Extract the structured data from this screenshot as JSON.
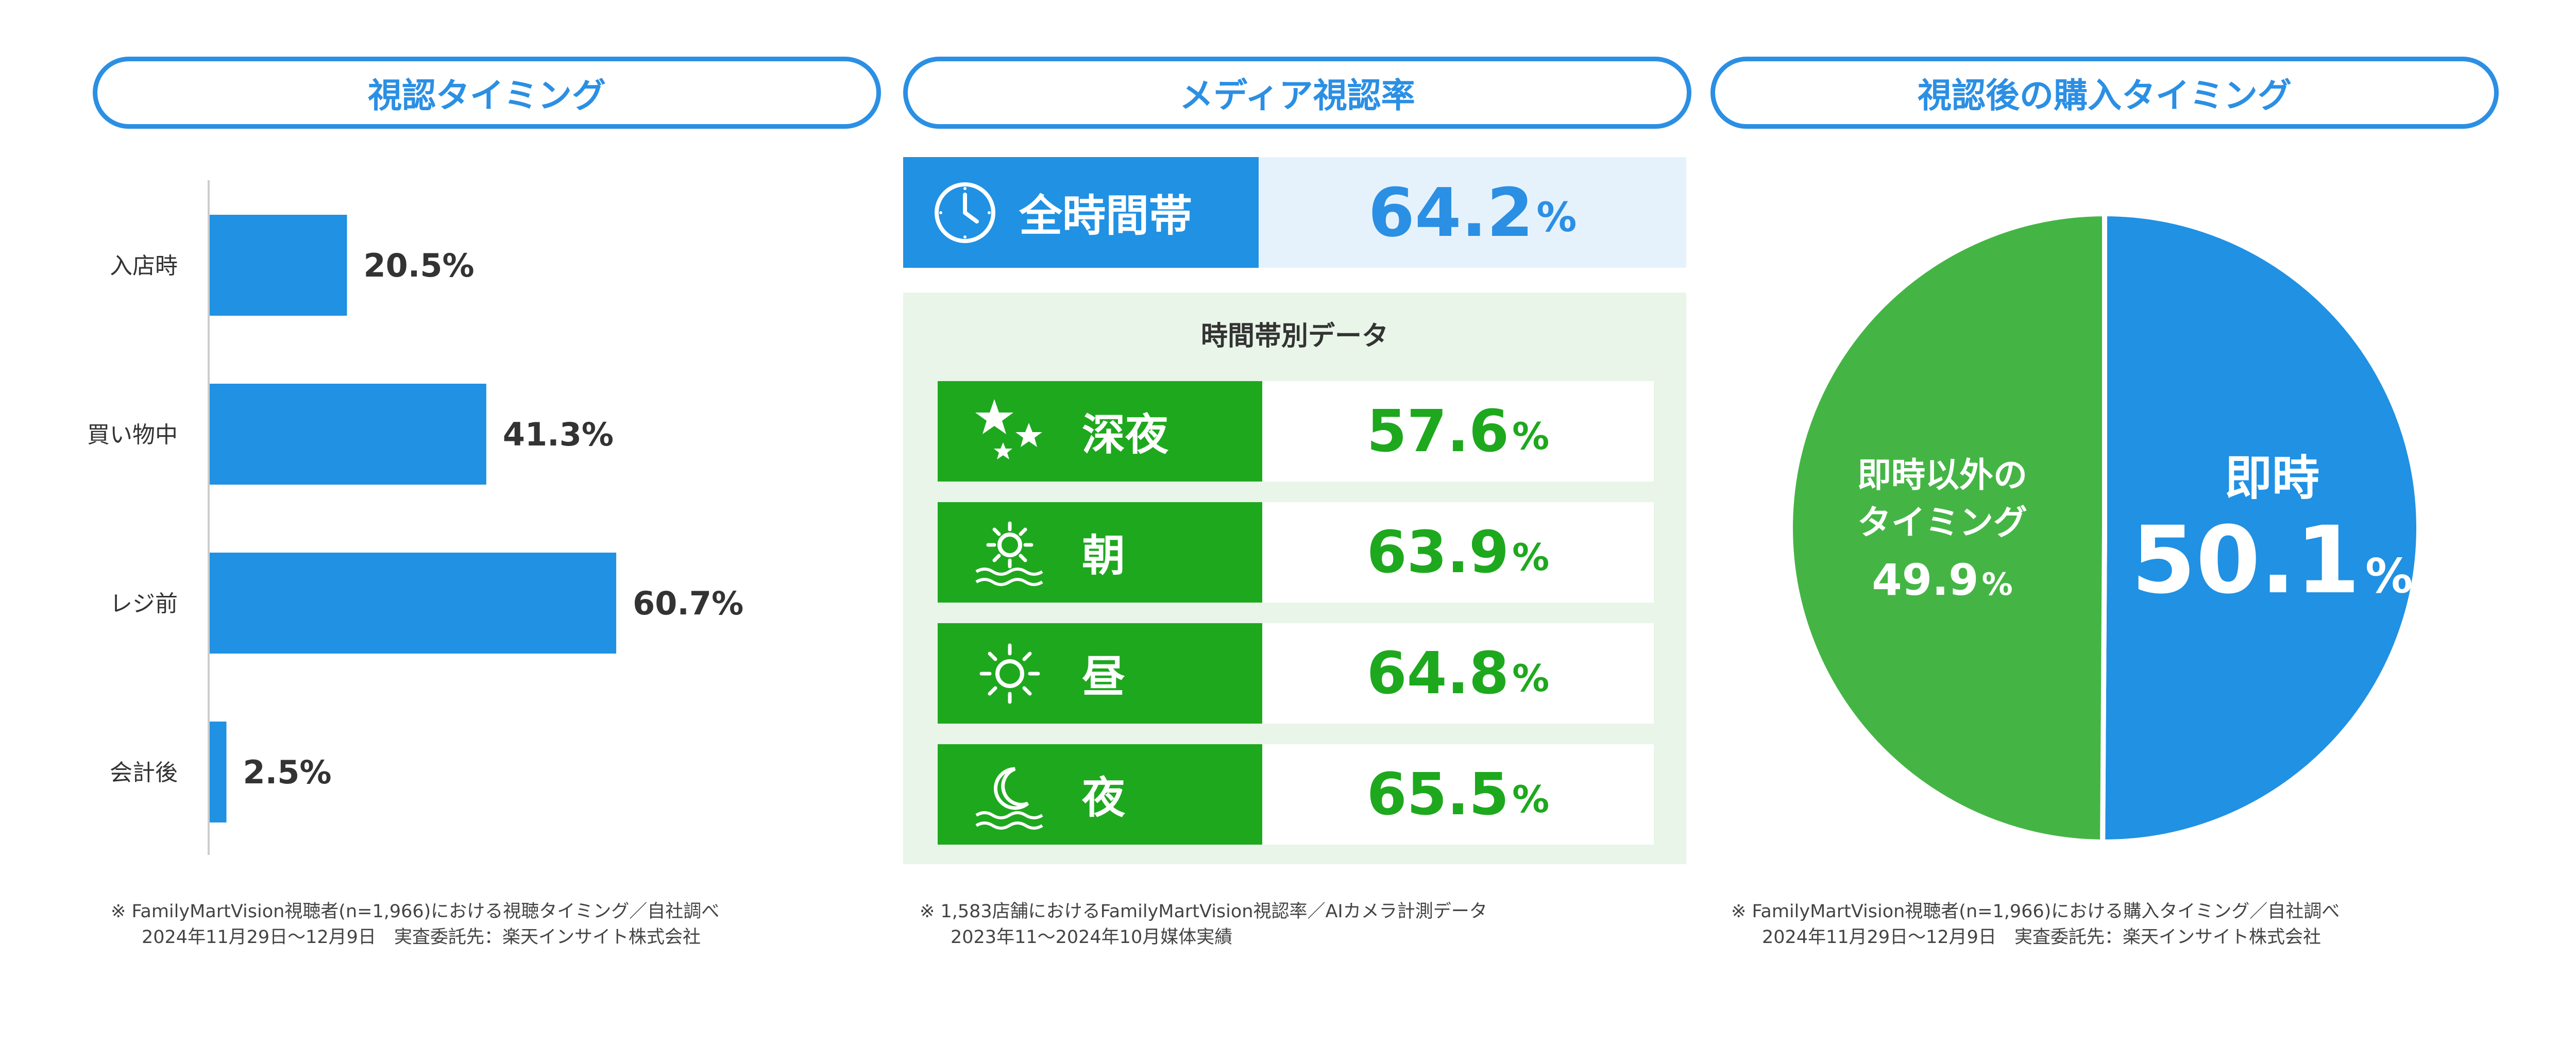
{
  "headers": {
    "left": "視認タイミング",
    "middle": "メディア視認率",
    "right": "視認後の購入タイミング"
  },
  "chart_data": [
    {
      "type": "bar",
      "orientation": "horizontal",
      "categories": [
        "入店時",
        "買い物中",
        "レジ前",
        "会計後"
      ],
      "values": [
        20.5,
        41.3,
        60.7,
        2.5
      ],
      "value_labels": [
        "20.5%",
        "41.3%",
        "60.7%",
        "2.5%"
      ],
      "xlim": [
        0,
        100
      ],
      "grid": false,
      "colors": {
        "bar": "#2091e3",
        "axis": "#cccccc"
      }
    },
    {
      "type": "table",
      "all_day": {
        "label": "全時間帯",
        "value": "64.2",
        "unit": "%",
        "icon": "clock-icon"
      },
      "section_title": "時間帯別データ",
      "rows": [
        {
          "label": "深夜",
          "value": "57.6",
          "unit": "%",
          "icon": "stars-icon"
        },
        {
          "label": "朝",
          "value": "63.9",
          "unit": "%",
          "icon": "sunrise-icon"
        },
        {
          "label": "昼",
          "value": "64.8",
          "unit": "%",
          "icon": "sun-icon"
        },
        {
          "label": "夜",
          "value": "65.5",
          "unit": "%",
          "icon": "moon-icon"
        }
      ],
      "colors": {
        "all_day": "#2091e3",
        "rows": "#1ea81e"
      }
    },
    {
      "type": "pie",
      "slices": [
        {
          "label": "即時",
          "value": 50.1,
          "display": "50.1",
          "unit": "%",
          "color": "#2091e3"
        },
        {
          "label_lines": [
            "即時以外の",
            "タイミング"
          ],
          "value": 49.9,
          "display": "49.9",
          "unit": "%",
          "color": "#44b544"
        }
      ]
    }
  ],
  "notes": {
    "left": [
      "※ FamilyMartVision視聴者(n=1,966)における視聴タイミング／自社調べ",
      "2024年11月29日～12月9日　実査委託先：楽天インサイト株式会社"
    ],
    "middle": [
      "※ 1,583店舗におけるFamilyMartVision視認率／AIカメラ計測データ",
      "2023年11～2024年10月媒体実績"
    ],
    "right": [
      "※ FamilyMartVision視聴者(n=1,966)における購入タイミング／自社調べ",
      "2024年11月29日～12月9日　実査委託先：楽天インサイト株式会社"
    ]
  }
}
